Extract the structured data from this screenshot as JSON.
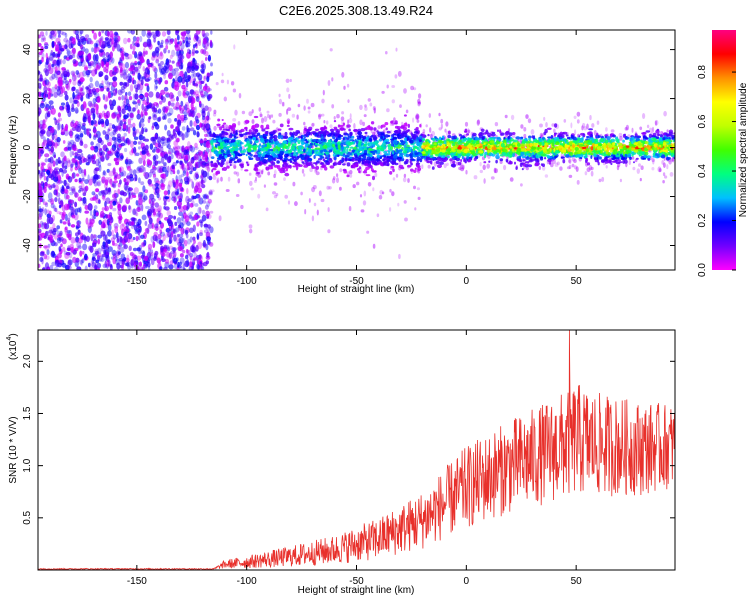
{
  "title": "C2E6.2025.308.13.49.R24",
  "chart_data": [
    {
      "type": "heatmap",
      "title": "C2E6.2025.308.13.49.R24",
      "xlabel": "Height of straight line (km)",
      "ylabel": "Frequency (Hz)",
      "xlim": [
        -195,
        95
      ],
      "ylim": [
        -50,
        48
      ],
      "xticks": [
        "-150",
        "-100",
        "-50",
        "0",
        "50"
      ],
      "yticks": [
        "40",
        "20",
        "0",
        "-20",
        "-40"
      ],
      "colorbar": {
        "label": "Normalized spectral amplitude",
        "range": [
          0,
          0.97
        ],
        "ticks": [
          "0.0",
          "0.2",
          "0.4",
          "0.6",
          "0.8"
        ],
        "colors": [
          "#ff00ff",
          "#7000ff",
          "#0000ff",
          "#00c0ff",
          "#00ff80",
          "#40ff00",
          "#c0ff00",
          "#ffff00",
          "#ff9000",
          "#ff0000",
          "#ff0080"
        ]
      },
      "regions": [
        {
          "x": [
            -195,
            -116
          ],
          "freq_range": [
            -50,
            48
          ],
          "amplitude": [
            0.05,
            0.2
          ]
        },
        {
          "x": [
            -116,
            -20
          ],
          "center_hz": 0,
          "half_width_hz": 8,
          "amplitude": [
            0.25,
            0.5
          ]
        },
        {
          "x": [
            -20,
            95
          ],
          "center_hz": 0,
          "half_width_hz": 5,
          "amplitude": [
            0.5,
            0.95
          ]
        }
      ]
    },
    {
      "type": "line",
      "xlabel": "Height of straight line (km)",
      "ylabel": "SNR (10 * V/V)",
      "multiplier_label": "(x10",
      "multiplier_exp": "4",
      "xlim": [
        -195,
        95
      ],
      "ylim": [
        0,
        2.3
      ],
      "xticks": [
        "-150",
        "-100",
        "-50",
        "0",
        "50"
      ],
      "yticks": [
        "2.0",
        "1.5",
        "1.0",
        "0.5"
      ],
      "series": [
        {
          "color": "#e8302b",
          "envelope_x": [
            -195,
            -115,
            -110,
            -100,
            -80,
            -60,
            -40,
            -20,
            0,
            20,
            40,
            50,
            60,
            80,
            95
          ],
          "envelope_mean": [
            0.01,
            0.01,
            0.05,
            0.07,
            0.12,
            0.18,
            0.28,
            0.45,
            0.75,
            0.95,
            1.1,
            1.2,
            1.15,
            1.12,
            1.15
          ],
          "envelope_spread": [
            0.005,
            0.005,
            0.04,
            0.06,
            0.1,
            0.14,
            0.2,
            0.28,
            0.4,
            0.45,
            0.5,
            0.55,
            0.5,
            0.45,
            0.4
          ],
          "peak_x": 47,
          "peak_y": 2.3
        }
      ]
    }
  ]
}
